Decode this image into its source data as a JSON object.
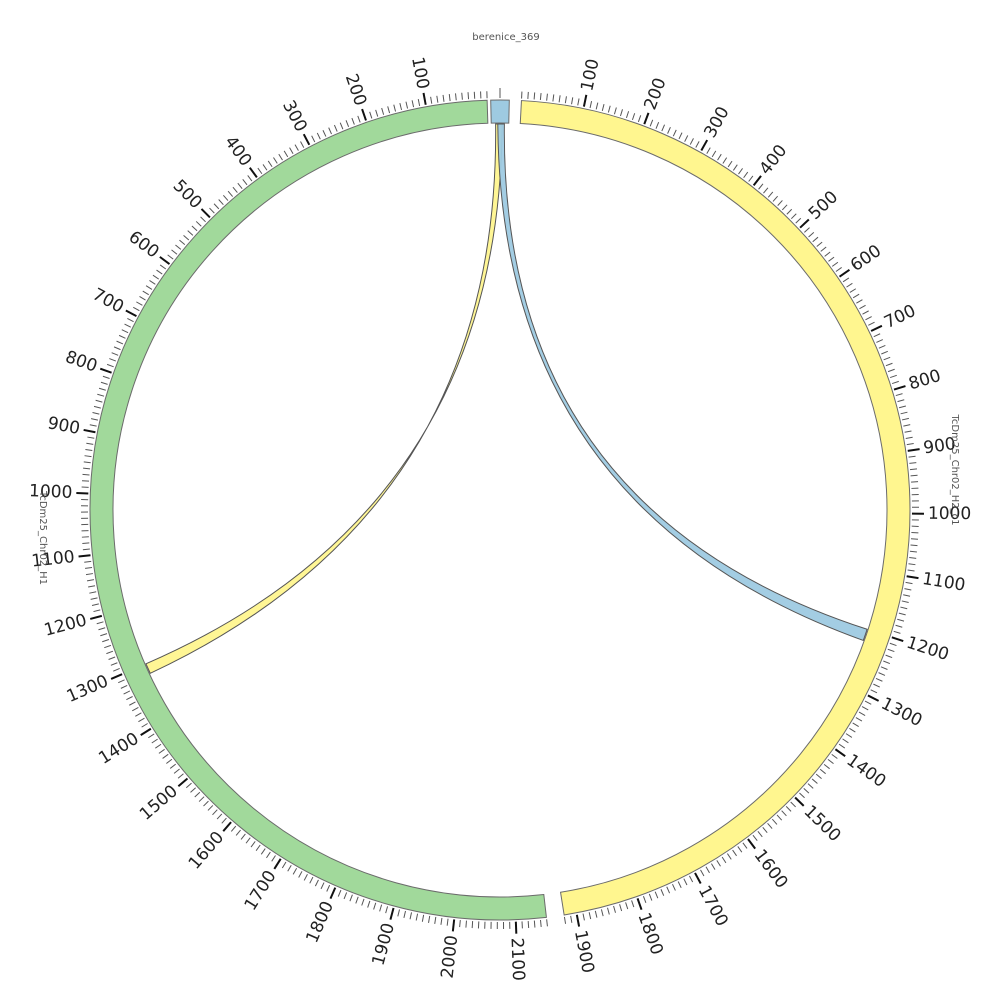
{
  "diagram": {
    "type": "circos",
    "segments": [
      {
        "name": "berenice_369",
        "length": 8,
        "color": "#9ecae1",
        "tick_labels": []
      },
      {
        "name": "TcDm25_Chr02_H2_c1",
        "length": 1920,
        "color": "#fff68f",
        "tick_labels": [
          "100",
          "200",
          "300",
          "400",
          "500",
          "600",
          "700",
          "800",
          "900",
          "1000",
          "1100",
          "1200",
          "1300",
          "1400",
          "1500",
          "1600",
          "1700",
          "1800",
          "1900"
        ]
      },
      {
        "name": "TcDm25_Chr02_H1",
        "length": 2150,
        "color": "#a1d99b",
        "tick_labels": [
          "100",
          "200",
          "300",
          "400",
          "500",
          "600",
          "700",
          "800",
          "900",
          "1000",
          "1100",
          "1200",
          "1300",
          "1400",
          "1500",
          "1600",
          "1700",
          "1800",
          "1900",
          "2000",
          "2100"
        ]
      }
    ],
    "links": [
      {
        "from": "berenice_369",
        "from_range": [
          2,
          5
        ],
        "to": "TcDm25_Chr02_H1",
        "to_range": [
          1300,
          1318
        ],
        "color": "#fff68f"
      },
      {
        "from": "berenice_369",
        "from_range": [
          3,
          6
        ],
        "to": "TcDm25_Chr02_H2_c1",
        "to_range": [
          1200,
          1220
        ],
        "color": "#9ecae1"
      }
    ]
  }
}
